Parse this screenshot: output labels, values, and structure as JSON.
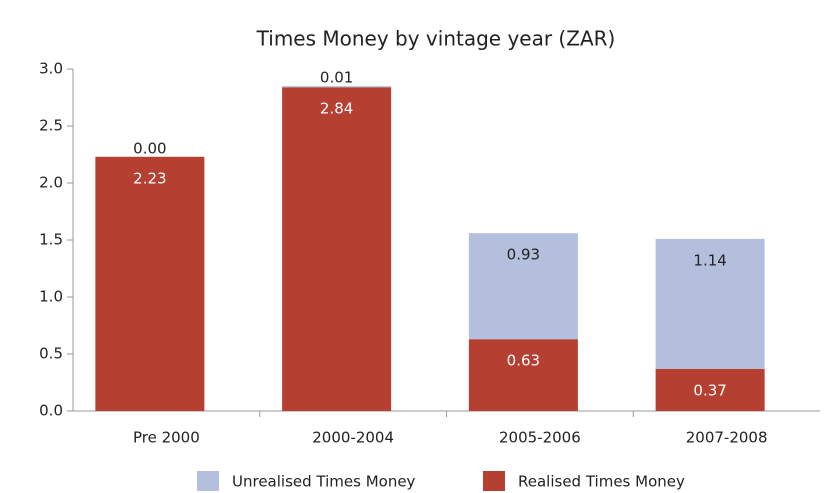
{
  "chart_data": {
    "type": "stacked_bar",
    "title": "Times Money by vintage year (ZAR)",
    "categories": [
      "Pre 2000",
      "2000-2004",
      "2005-2006",
      "2007-2008"
    ],
    "series": [
      {
        "name": "Realised Times Money",
        "color": "#b53f30",
        "values": [
          2.23,
          2.84,
          0.63,
          0.37
        ],
        "value_labels": [
          "2.23",
          "2.84",
          "0.63",
          "0.37"
        ]
      },
      {
        "name": "Unrealised Times Money",
        "color": "#b3bfdc",
        "values": [
          0,
          0.01,
          0.93,
          1.14
        ],
        "value_labels": [
          "0.00",
          "0.01",
          "0.93",
          "1.14"
        ]
      }
    ],
    "ylim": [
      0,
      3
    ],
    "yticks": [
      {
        "value": 0,
        "label": "0.0"
      },
      0.5,
      {
        "value": 1,
        "label": "1.0"
      },
      1.5,
      {
        "value": 2,
        "label": "2.0"
      },
      2.5,
      {
        "value": 3,
        "label": "3.0"
      }
    ],
    "grid": false,
    "legend": "bottom"
  }
}
